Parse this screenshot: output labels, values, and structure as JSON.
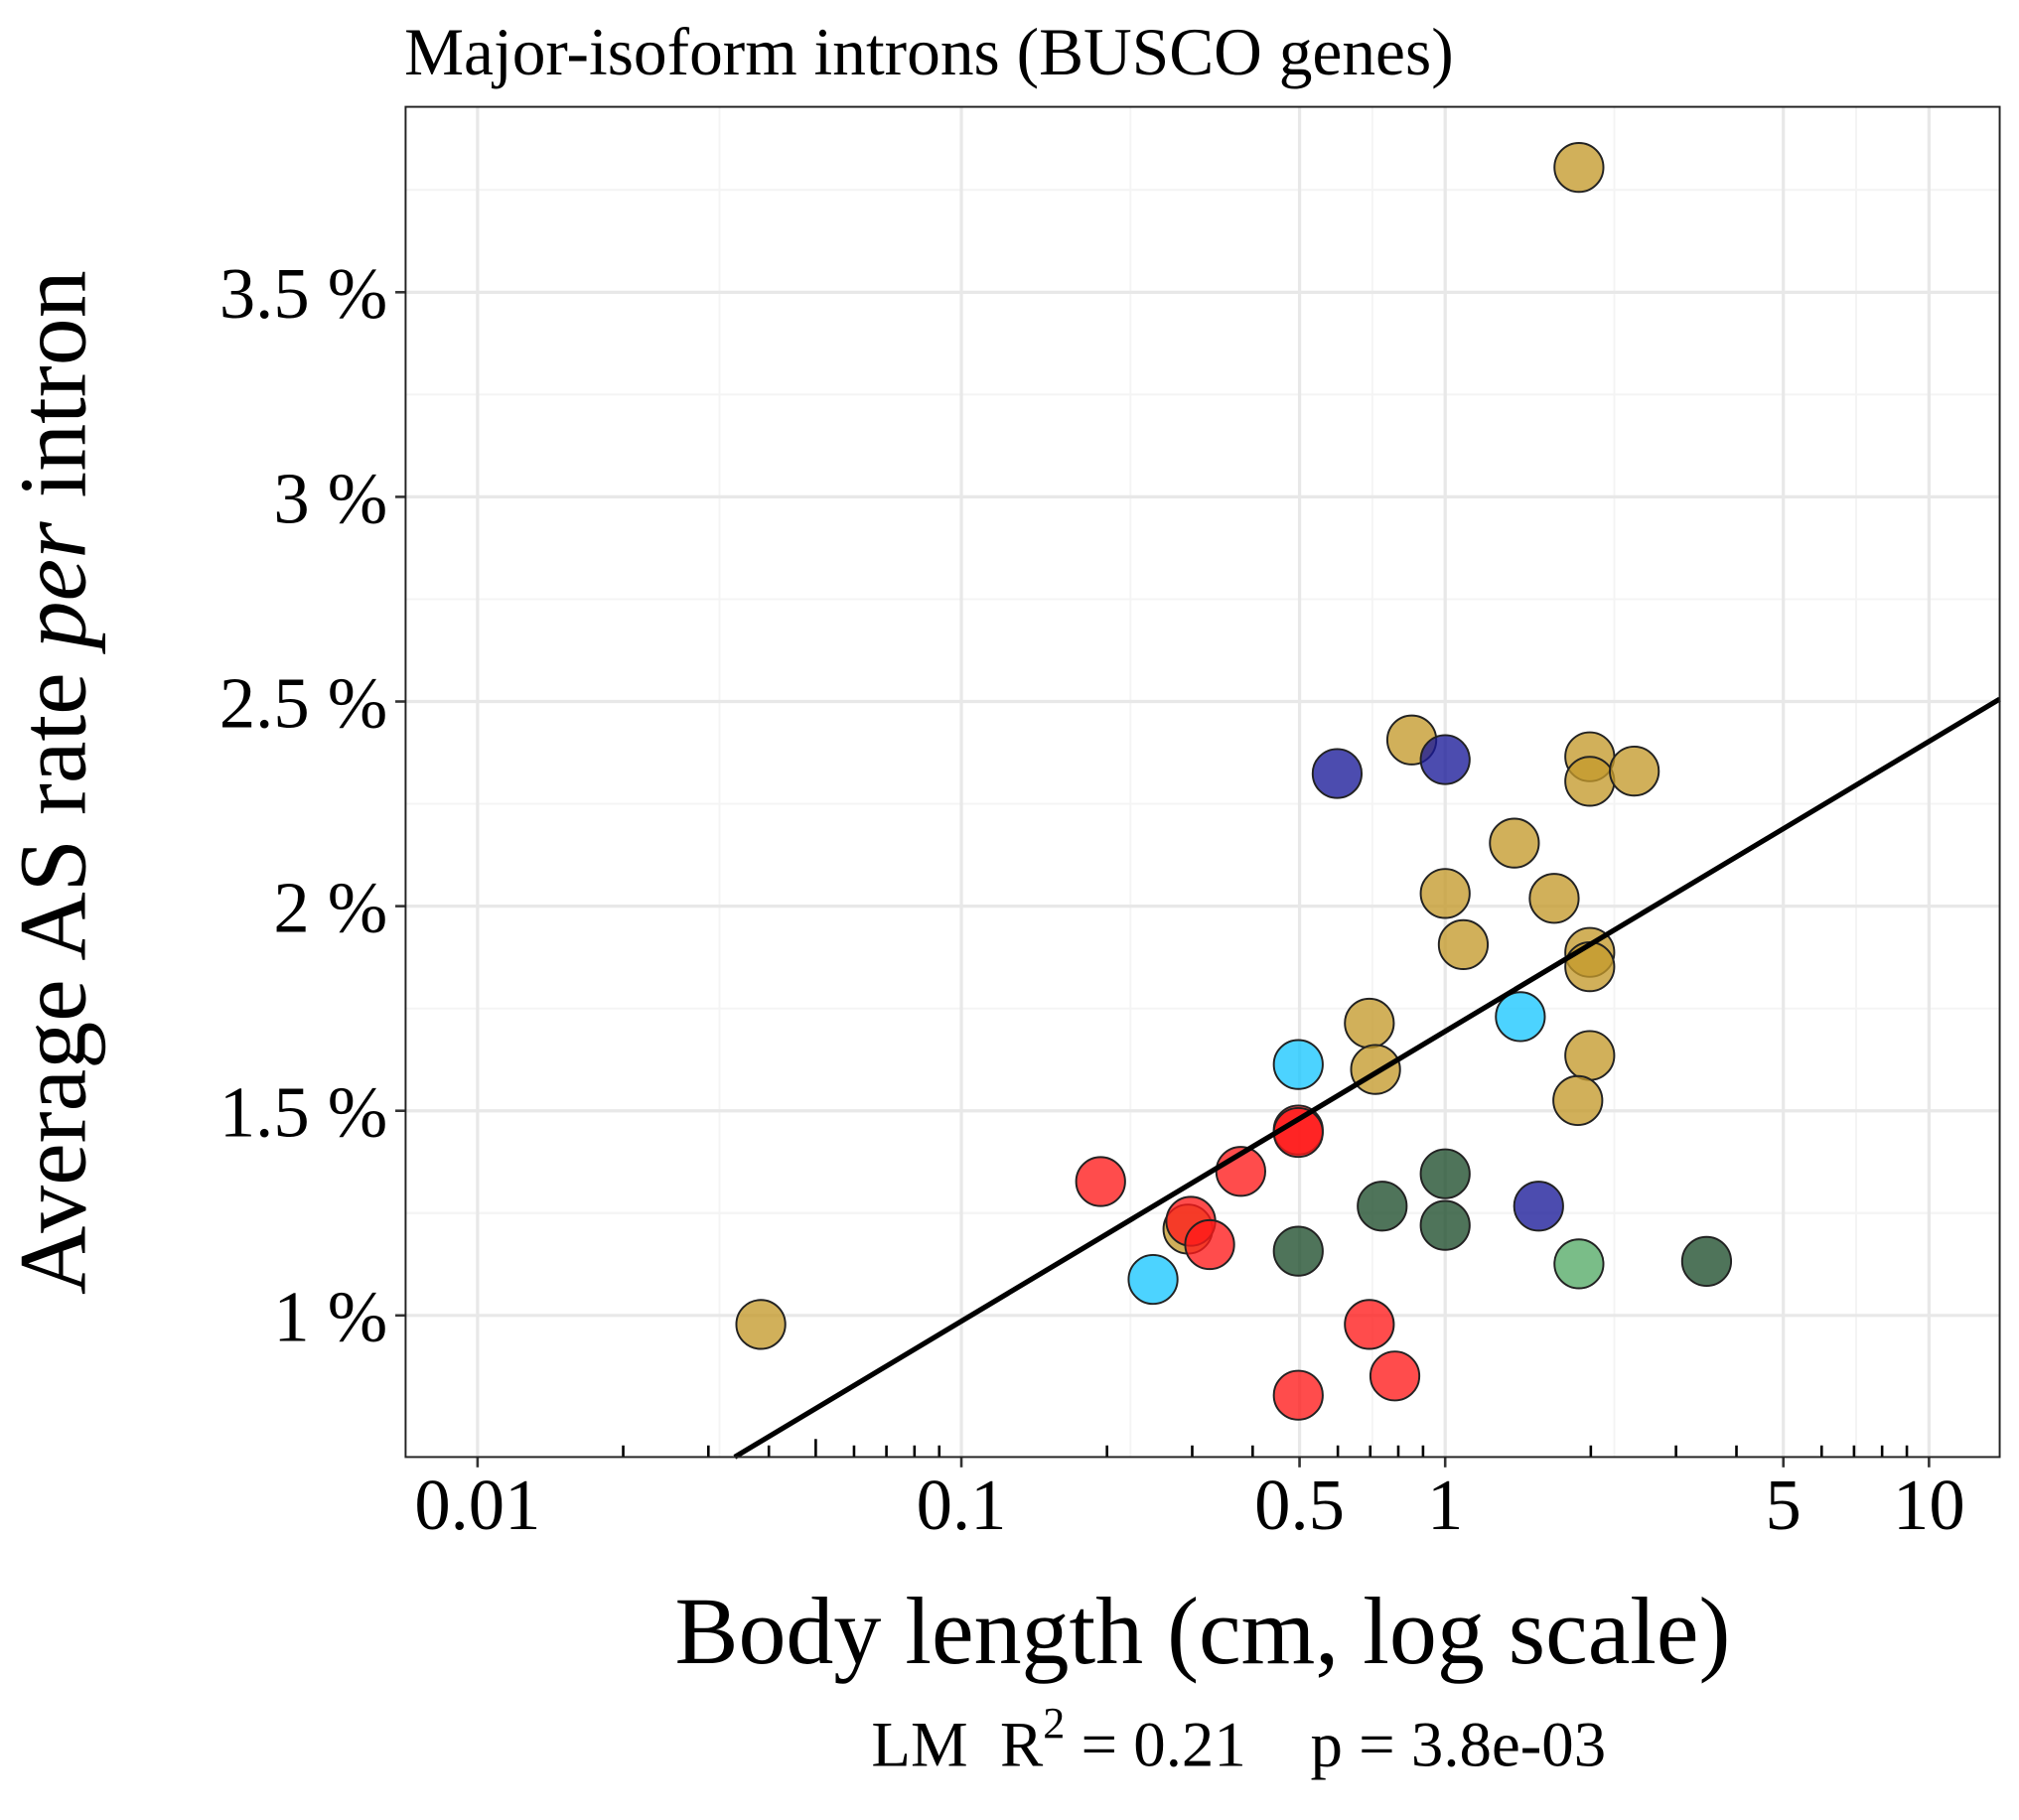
{
  "chart_data": {
    "type": "scatter",
    "title": "Major-isoform introns (BUSCO genes)",
    "x_label": "Body length (cm, log scale)",
    "y_label": [
      "Average AS rate ",
      "per",
      " intron"
    ],
    "annotation": {
      "lead": "LM  R",
      "sup": "2",
      "rest": " = 0.21    p = 3.8e-03"
    },
    "xscale": "log",
    "grid": true,
    "xlim": [
      0.0071,
      14
    ],
    "ylim": [
      0.654,
      3.953
    ],
    "xticks": [
      0.01,
      0.1,
      0.5,
      1,
      5,
      10
    ],
    "xminorticks": [
      0.02,
      0.03,
      0.04,
      0.05,
      0.06,
      0.07,
      0.08,
      0.09,
      0.2,
      0.3,
      0.4,
      0.6,
      0.7,
      0.8,
      0.9,
      2,
      3,
      4,
      6,
      7,
      8,
      9
    ],
    "yticks": [
      {
        "value": 1,
        "label": "1 %"
      },
      {
        "value": 1.5,
        "label": "1.5 %"
      },
      {
        "value": 2,
        "label": "2 %"
      },
      {
        "value": 2.5,
        "label": "2.5 %"
      },
      {
        "value": 3,
        "label": "3 %"
      },
      {
        "value": 3.5,
        "label": "3.5 %"
      }
    ],
    "series": [
      {
        "color": "#c49a2c",
        "x": [
          0.0385,
          1.89,
          0.853,
          1.99,
          1.99,
          2.46,
          1.39,
          1.0,
          1.68,
          1.09,
          1.99,
          1.99,
          0.697,
          0.718,
          1.99,
          1.88,
          0.294
        ],
        "values": [
          0.978,
          3.805,
          2.406,
          2.365,
          2.305,
          2.33,
          2.154,
          2.031,
          2.019,
          1.906,
          1.887,
          1.852,
          1.714,
          1.601,
          1.635,
          1.525,
          1.211
        ]
      },
      {
        "color": "#ff1a1a",
        "x": [
          0.194,
          0.378,
          0.497,
          0.497,
          0.298,
          0.326,
          0.697,
          0.787,
          0.497
        ],
        "values": [
          1.327,
          1.352,
          1.453,
          1.447,
          1.23,
          1.173,
          0.978,
          0.852,
          0.805
        ]
      },
      {
        "color": "#1a1a99",
        "x": [
          0.598,
          1.0,
          1.56
        ],
        "values": [
          2.324,
          2.358,
          1.267
        ]
      },
      {
        "color": "#1ac6ff",
        "x": [
          0.497,
          1.43,
          0.249
        ],
        "values": [
          1.613,
          1.73,
          1.088
        ]
      },
      {
        "color": "#1e4d2b",
        "x": [
          1.0,
          0.741,
          1.0,
          0.497,
          3.47
        ],
        "values": [
          1.346,
          1.267,
          1.22,
          1.157,
          1.132
        ]
      },
      {
        "color": "#55aa66",
        "x": [
          1.89
        ],
        "values": [
          1.126
        ]
      }
    ],
    "trend": {
      "color": "#000000",
      "x": [
        0.034,
        14
      ],
      "values": [
        0.654,
        2.506
      ]
    }
  }
}
